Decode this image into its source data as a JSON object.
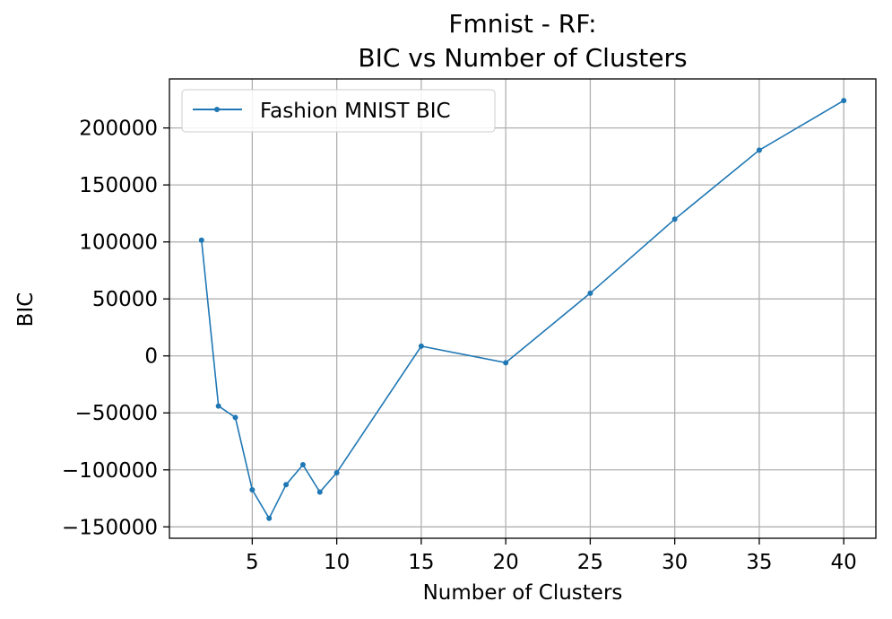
{
  "chart_data": {
    "type": "line",
    "title_line1": "Fmnist - RF:",
    "title_line2": "BIC vs Number of Clusters",
    "xlabel": "Number of Clusters",
    "ylabel": "BIC",
    "xlim": [
      0.1,
      41.9
    ],
    "ylim": [
      -160000,
      243000
    ],
    "xticks": [
      5,
      10,
      15,
      20,
      25,
      30,
      35,
      40
    ],
    "yticks": [
      -150000,
      -100000,
      -50000,
      0,
      50000,
      100000,
      150000,
      200000
    ],
    "grid": true,
    "legend_position": "upper-left",
    "series": [
      {
        "name": "Fashion MNIST BIC",
        "color": "#1f77b4",
        "x": [
          2,
          3,
          4,
          5,
          6,
          7,
          8,
          9,
          10,
          15,
          20,
          25,
          30,
          35,
          40
        ],
        "y": [
          101500,
          -44000,
          -54000,
          -117500,
          -142500,
          -113000,
          -95500,
          -119500,
          -102500,
          8500,
          -6000,
          55000,
          120000,
          180500,
          224000
        ]
      }
    ]
  }
}
